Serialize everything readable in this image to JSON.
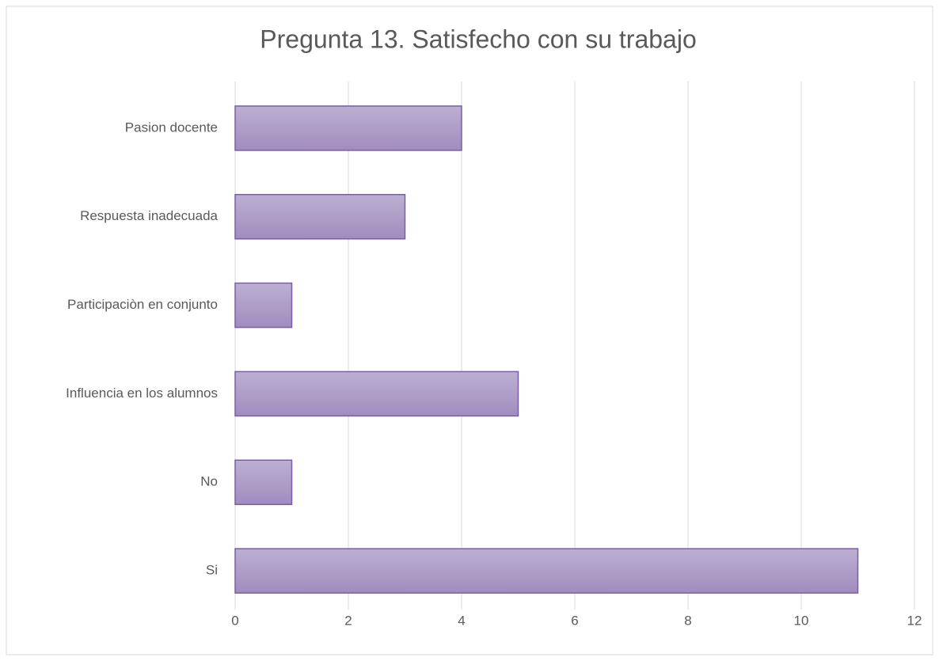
{
  "chart_data": {
    "type": "bar",
    "orientation": "horizontal",
    "title": "Pregunta 13. Satisfecho con su trabajo",
    "categories": [
      "Si",
      "No",
      "Influencia en los alumnos",
      "Participaciòn en conjunto",
      "Respuesta inadecuada",
      "Pasion docente"
    ],
    "values": [
      11,
      1,
      5,
      1,
      3,
      4
    ],
    "color": "#a996c4",
    "xlim": [
      0,
      12
    ],
    "xticks": [
      0,
      2,
      4,
      6,
      8,
      10,
      12
    ],
    "grid": true
  }
}
